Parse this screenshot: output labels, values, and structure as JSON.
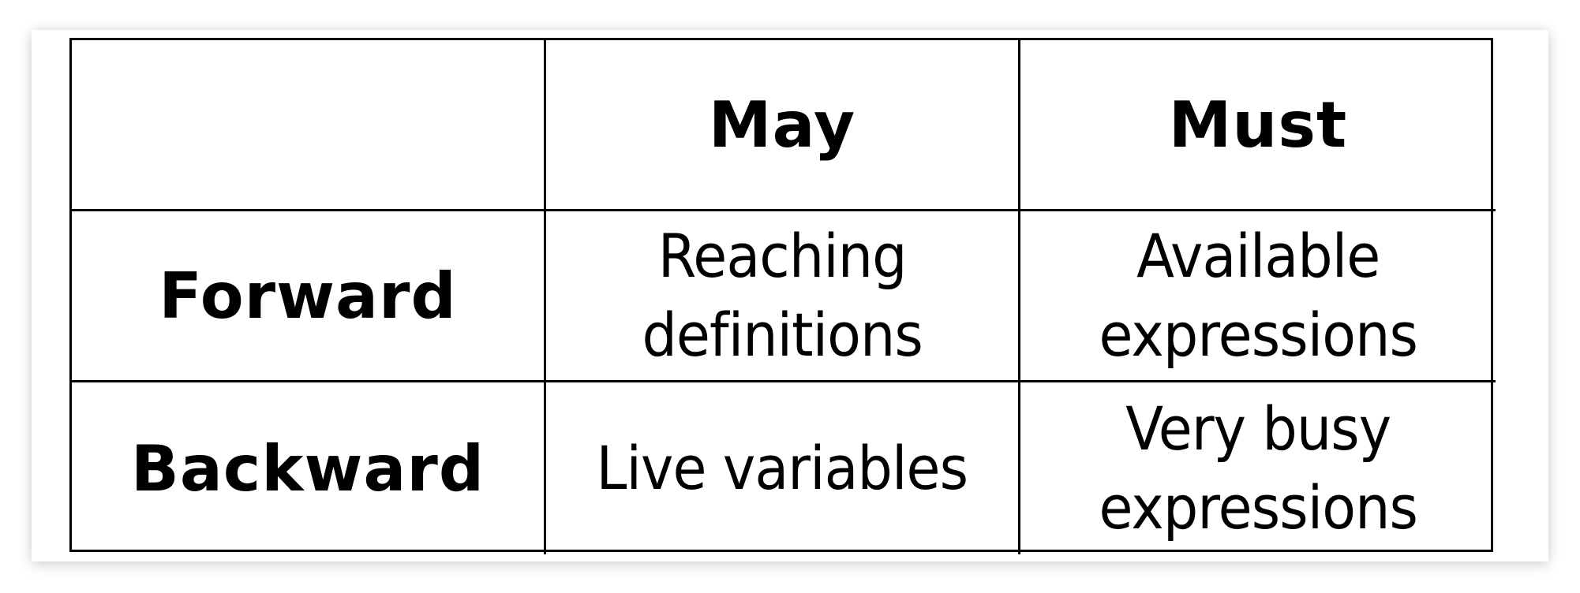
{
  "table": {
    "column_headers": [
      "",
      "May",
      "Must"
    ],
    "rows": [
      {
        "label": "Forward",
        "may": [
          "Reaching",
          "definitions"
        ],
        "must": [
          "Available",
          "expressions"
        ]
      },
      {
        "label": "Backward",
        "may": [
          "Live variables"
        ],
        "must": [
          "Very busy",
          "expressions"
        ]
      }
    ]
  }
}
